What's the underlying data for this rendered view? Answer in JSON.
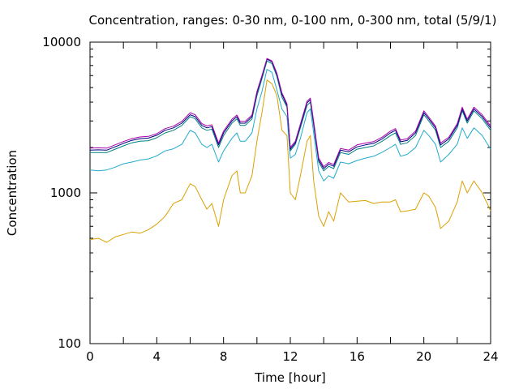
{
  "chart_data": {
    "type": "line",
    "title": "Concentration, ranges: 0-30 nm, 0-100 nm, 0-300 nm, total (5/9/1)",
    "xlabel": "Time [hour]",
    "ylabel": "Concentration",
    "xlim": [
      0,
      24
    ],
    "ylim": [
      100,
      10000
    ],
    "yscale": "log",
    "xticks": [
      0,
      4,
      8,
      12,
      16,
      20,
      24
    ],
    "yticks": [
      100,
      1000,
      10000
    ],
    "legend": "none",
    "grid": false,
    "series": [
      {
        "color": "#dca000",
        "points": [
          [
            0,
            490
          ],
          [
            0.5,
            500
          ],
          [
            1,
            470
          ],
          [
            1.5,
            510
          ],
          [
            2,
            530
          ],
          [
            2.5,
            550
          ],
          [
            3,
            540
          ],
          [
            3.5,
            570
          ],
          [
            4,
            620
          ],
          [
            4.5,
            700
          ],
          [
            5,
            850
          ],
          [
            5.5,
            900
          ],
          [
            6,
            1150
          ],
          [
            6.3,
            1100
          ],
          [
            6.7,
            900
          ],
          [
            7,
            780
          ],
          [
            7.3,
            850
          ],
          [
            7.7,
            600
          ],
          [
            8,
            900
          ],
          [
            8.5,
            1300
          ],
          [
            8.8,
            1400
          ],
          [
            9,
            1000
          ],
          [
            9.3,
            1000
          ],
          [
            9.7,
            1300
          ],
          [
            10,
            2200
          ],
          [
            10.3,
            3400
          ],
          [
            10.6,
            5600
          ],
          [
            10.9,
            5300
          ],
          [
            11.2,
            4400
          ],
          [
            11.5,
            2600
          ],
          [
            11.8,
            2400
          ],
          [
            12,
            1000
          ],
          [
            12.3,
            900
          ],
          [
            12.6,
            1300
          ],
          [
            13,
            2200
          ],
          [
            13.2,
            2400
          ],
          [
            13.4,
            1200
          ],
          [
            13.7,
            700
          ],
          [
            14,
            600
          ],
          [
            14.3,
            750
          ],
          [
            14.6,
            650
          ],
          [
            15,
            1000
          ],
          [
            15.5,
            870
          ],
          [
            16,
            880
          ],
          [
            16.5,
            890
          ],
          [
            17,
            850
          ],
          [
            17.5,
            870
          ],
          [
            18,
            870
          ],
          [
            18.3,
            900
          ],
          [
            18.6,
            750
          ],
          [
            19,
            760
          ],
          [
            19.5,
            780
          ],
          [
            20,
            1000
          ],
          [
            20.3,
            950
          ],
          [
            20.7,
            800
          ],
          [
            21,
            580
          ],
          [
            21.5,
            650
          ],
          [
            22,
            870
          ],
          [
            22.3,
            1200
          ],
          [
            22.6,
            1000
          ],
          [
            23,
            1200
          ],
          [
            23.5,
            1000
          ],
          [
            24,
            760
          ]
        ]
      },
      {
        "color": "#22aacc",
        "points": [
          [
            0,
            1420
          ],
          [
            0.5,
            1400
          ],
          [
            1,
            1420
          ],
          [
            1.5,
            1480
          ],
          [
            2,
            1560
          ],
          [
            2.5,
            1600
          ],
          [
            3,
            1650
          ],
          [
            3.5,
            1680
          ],
          [
            4,
            1760
          ],
          [
            4.5,
            1900
          ],
          [
            5,
            1960
          ],
          [
            5.5,
            2100
          ],
          [
            6,
            2600
          ],
          [
            6.3,
            2500
          ],
          [
            6.7,
            2100
          ],
          [
            7,
            2000
          ],
          [
            7.3,
            2100
          ],
          [
            7.7,
            1600
          ],
          [
            8,
            1900
          ],
          [
            8.5,
            2300
          ],
          [
            8.8,
            2500
          ],
          [
            9,
            2200
          ],
          [
            9.3,
            2200
          ],
          [
            9.7,
            2500
          ],
          [
            10,
            3600
          ],
          [
            10.3,
            4700
          ],
          [
            10.6,
            6600
          ],
          [
            10.9,
            6300
          ],
          [
            11.2,
            4800
          ],
          [
            11.5,
            3600
          ],
          [
            11.8,
            3200
          ],
          [
            12,
            1700
          ],
          [
            12.3,
            1800
          ],
          [
            12.6,
            2300
          ],
          [
            13,
            3400
          ],
          [
            13.2,
            3600
          ],
          [
            13.4,
            2500
          ],
          [
            13.7,
            1400
          ],
          [
            14,
            1200
          ],
          [
            14.3,
            1300
          ],
          [
            14.6,
            1250
          ],
          [
            15,
            1600
          ],
          [
            15.5,
            1560
          ],
          [
            16,
            1640
          ],
          [
            16.5,
            1700
          ],
          [
            17,
            1750
          ],
          [
            17.5,
            1860
          ],
          [
            18,
            2000
          ],
          [
            18.3,
            2100
          ],
          [
            18.6,
            1750
          ],
          [
            19,
            1800
          ],
          [
            19.5,
            2000
          ],
          [
            20,
            2600
          ],
          [
            20.3,
            2400
          ],
          [
            20.7,
            2100
          ],
          [
            21,
            1600
          ],
          [
            21.5,
            1800
          ],
          [
            22,
            2100
          ],
          [
            22.3,
            2700
          ],
          [
            22.6,
            2300
          ],
          [
            23,
            2700
          ],
          [
            23.5,
            2400
          ],
          [
            24,
            1950
          ]
        ]
      },
      {
        "color": "#008080",
        "points": [
          [
            0,
            1850
          ],
          [
            0.5,
            1850
          ],
          [
            1,
            1850
          ],
          [
            1.5,
            1950
          ],
          [
            2,
            2050
          ],
          [
            2.5,
            2150
          ],
          [
            3,
            2200
          ],
          [
            3.5,
            2220
          ],
          [
            4,
            2320
          ],
          [
            4.5,
            2500
          ],
          [
            5,
            2600
          ],
          [
            5.5,
            2800
          ],
          [
            6,
            3200
          ],
          [
            6.3,
            3100
          ],
          [
            6.7,
            2700
          ],
          [
            7,
            2600
          ],
          [
            7.3,
            2650
          ],
          [
            7.7,
            2000
          ],
          [
            8,
            2400
          ],
          [
            8.5,
            2900
          ],
          [
            8.8,
            3100
          ],
          [
            9,
            2800
          ],
          [
            9.3,
            2800
          ],
          [
            9.7,
            3100
          ],
          [
            10,
            4400
          ],
          [
            10.3,
            5700
          ],
          [
            10.6,
            7500
          ],
          [
            10.9,
            7200
          ],
          [
            11.2,
            5900
          ],
          [
            11.5,
            4300
          ],
          [
            11.8,
            3700
          ],
          [
            12,
            1900
          ],
          [
            12.3,
            2100
          ],
          [
            12.6,
            2700
          ],
          [
            13,
            3800
          ],
          [
            13.2,
            4000
          ],
          [
            13.4,
            2800
          ],
          [
            13.7,
            1600
          ],
          [
            14,
            1400
          ],
          [
            14.3,
            1500
          ],
          [
            14.6,
            1450
          ],
          [
            15,
            1850
          ],
          [
            15.5,
            1800
          ],
          [
            16,
            1950
          ],
          [
            16.5,
            2000
          ],
          [
            17,
            2050
          ],
          [
            17.5,
            2200
          ],
          [
            18,
            2400
          ],
          [
            18.3,
            2500
          ],
          [
            18.6,
            2100
          ],
          [
            19,
            2150
          ],
          [
            19.5,
            2400
          ],
          [
            20,
            3300
          ],
          [
            20.3,
            3000
          ],
          [
            20.7,
            2600
          ],
          [
            21,
            2000
          ],
          [
            21.5,
            2200
          ],
          [
            22,
            2700
          ],
          [
            22.3,
            3500
          ],
          [
            22.6,
            2900
          ],
          [
            23,
            3500
          ],
          [
            23.5,
            3100
          ],
          [
            24,
            2600
          ]
        ]
      },
      {
        "color": "#000080",
        "points": [
          [
            0,
            1920
          ],
          [
            0.5,
            1930
          ],
          [
            1,
            1920
          ],
          [
            1.5,
            2020
          ],
          [
            2,
            2130
          ],
          [
            2.5,
            2230
          ],
          [
            3,
            2290
          ],
          [
            3.5,
            2310
          ],
          [
            4,
            2410
          ],
          [
            4.5,
            2600
          ],
          [
            5,
            2700
          ],
          [
            5.5,
            2900
          ],
          [
            6,
            3300
          ],
          [
            6.3,
            3200
          ],
          [
            6.7,
            2800
          ],
          [
            7,
            2700
          ],
          [
            7.3,
            2750
          ],
          [
            7.7,
            2080
          ],
          [
            8,
            2500
          ],
          [
            8.5,
            3000
          ],
          [
            8.8,
            3200
          ],
          [
            9,
            2900
          ],
          [
            9.3,
            2900
          ],
          [
            9.7,
            3200
          ],
          [
            10,
            4600
          ],
          [
            10.3,
            5900
          ],
          [
            10.6,
            7700
          ],
          [
            10.9,
            7400
          ],
          [
            11.2,
            6100
          ],
          [
            11.5,
            4500
          ],
          [
            11.8,
            3800
          ],
          [
            12,
            1950
          ],
          [
            12.3,
            2150
          ],
          [
            12.6,
            2800
          ],
          [
            13,
            3950
          ],
          [
            13.2,
            4150
          ],
          [
            13.4,
            2900
          ],
          [
            13.7,
            1650
          ],
          [
            14,
            1450
          ],
          [
            14.3,
            1550
          ],
          [
            14.6,
            1500
          ],
          [
            15,
            1920
          ],
          [
            15.5,
            1870
          ],
          [
            16,
            2020
          ],
          [
            16.5,
            2080
          ],
          [
            17,
            2130
          ],
          [
            17.5,
            2280
          ],
          [
            18,
            2500
          ],
          [
            18.3,
            2600
          ],
          [
            18.6,
            2180
          ],
          [
            19,
            2230
          ],
          [
            19.5,
            2500
          ],
          [
            20,
            3400
          ],
          [
            20.3,
            3100
          ],
          [
            20.7,
            2700
          ],
          [
            21,
            2080
          ],
          [
            21.5,
            2280
          ],
          [
            22,
            2800
          ],
          [
            22.3,
            3600
          ],
          [
            22.6,
            3000
          ],
          [
            23,
            3600
          ],
          [
            23.5,
            3200
          ],
          [
            24,
            2700
          ]
        ]
      },
      {
        "color": "#aa00aa",
        "points": [
          [
            0,
            1980
          ],
          [
            0.5,
            1990
          ],
          [
            1,
            1980
          ],
          [
            1.5,
            2080
          ],
          [
            2,
            2190
          ],
          [
            2.5,
            2290
          ],
          [
            3,
            2350
          ],
          [
            3.5,
            2370
          ],
          [
            4,
            2470
          ],
          [
            4.5,
            2670
          ],
          [
            5,
            2770
          ],
          [
            5.5,
            2980
          ],
          [
            6,
            3400
          ],
          [
            6.3,
            3300
          ],
          [
            6.7,
            2880
          ],
          [
            7,
            2780
          ],
          [
            7.3,
            2830
          ],
          [
            7.7,
            2140
          ],
          [
            8,
            2570
          ],
          [
            8.5,
            3080
          ],
          [
            8.8,
            3280
          ],
          [
            9,
            2980
          ],
          [
            9.3,
            2980
          ],
          [
            9.7,
            3280
          ],
          [
            10,
            4700
          ],
          [
            10.3,
            6000
          ],
          [
            10.6,
            7800
          ],
          [
            10.9,
            7500
          ],
          [
            11.2,
            6200
          ],
          [
            11.5,
            4600
          ],
          [
            11.8,
            3900
          ],
          [
            12,
            2000
          ],
          [
            12.3,
            2200
          ],
          [
            12.6,
            2860
          ],
          [
            13,
            4050
          ],
          [
            13.2,
            4250
          ],
          [
            13.4,
            2980
          ],
          [
            13.7,
            1700
          ],
          [
            14,
            1490
          ],
          [
            14.3,
            1590
          ],
          [
            14.6,
            1540
          ],
          [
            15,
            1970
          ],
          [
            15.5,
            1920
          ],
          [
            16,
            2080
          ],
          [
            16.5,
            2140
          ],
          [
            17,
            2190
          ],
          [
            17.5,
            2340
          ],
          [
            18,
            2570
          ],
          [
            18.3,
            2670
          ],
          [
            18.6,
            2240
          ],
          [
            19,
            2290
          ],
          [
            19.5,
            2570
          ],
          [
            20,
            3500
          ],
          [
            20.3,
            3180
          ],
          [
            20.7,
            2770
          ],
          [
            21,
            2140
          ],
          [
            21.5,
            2340
          ],
          [
            22,
            2880
          ],
          [
            22.3,
            3700
          ],
          [
            22.6,
            3080
          ],
          [
            23,
            3700
          ],
          [
            23.5,
            3290
          ],
          [
            24,
            2780
          ]
        ]
      }
    ]
  }
}
